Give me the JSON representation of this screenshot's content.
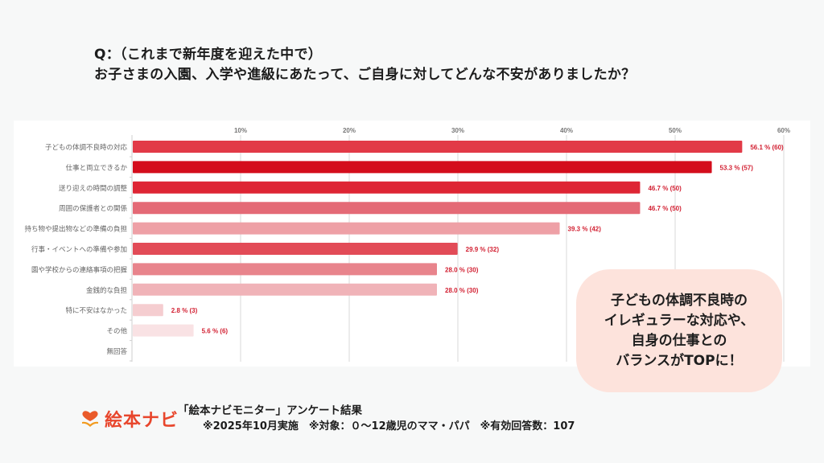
{
  "question": {
    "line1": "Q：（これまで新年度を迎えた中で）",
    "line2": "お子さまの入園、入学や進級にあたって、ご自身に対してどんな不安がありましたか？"
  },
  "chart_data": {
    "type": "bar",
    "orientation": "horizontal",
    "title": "",
    "xlabel": "",
    "ylabel": "",
    "xlim": [
      0,
      60
    ],
    "x_ticks": [
      "10%",
      "20%",
      "30%",
      "40%",
      "50%",
      "60%"
    ],
    "x_tick_values": [
      10,
      20,
      30,
      40,
      50,
      60
    ],
    "grid": true,
    "categories": [
      "子どもの体調不良時の対応",
      "仕事と両立できるか",
      "送り迎えの時間の調整",
      "周囲の保護者との関係",
      "持ち物や提出物などの準備の負担",
      "行事・イベントへの準備や参加",
      "園や学校からの連絡事項の把握",
      "金銭的な負担",
      "特に不安はなかった",
      "その他",
      "無回答"
    ],
    "values": [
      56.1,
      53.3,
      46.7,
      46.7,
      39.3,
      29.9,
      28.0,
      28.0,
      2.8,
      5.6,
      0
    ],
    "counts": [
      60,
      57,
      50,
      50,
      42,
      32,
      30,
      30,
      3,
      6,
      0
    ],
    "data_labels": [
      "56.1 % (60)",
      "53.3 % (57)",
      "46.7 % (50)",
      "46.7 % (50)",
      "39.3 % (42)",
      "29.9 % (32)",
      "28.0 % (30)",
      "28.0 % (30)",
      "2.8 % (3)",
      "5.6 % (6)",
      ""
    ],
    "bar_colors": [
      "#e23a47",
      "#d40d1c",
      "#de2534",
      "#e46a76",
      "#eea0a6",
      "#e24b57",
      "#e8848c",
      "#f0b3b8",
      "#f5cdd0",
      "#f9e2e4",
      "#ffffff"
    ],
    "label_color": "#d21f31"
  },
  "callout": {
    "lines": [
      "子どもの体調不良時の",
      "イレギュラーな対応や、",
      "自身の仕事との",
      "バランスがTOPに！"
    ]
  },
  "footer": {
    "logo_text": "絵本ナビ",
    "title": "「絵本ナビモニター」アンケート結果",
    "note": "※2025年10月実施　※対象：０～12歳児のママ・パパ　※有効回答数：107"
  }
}
